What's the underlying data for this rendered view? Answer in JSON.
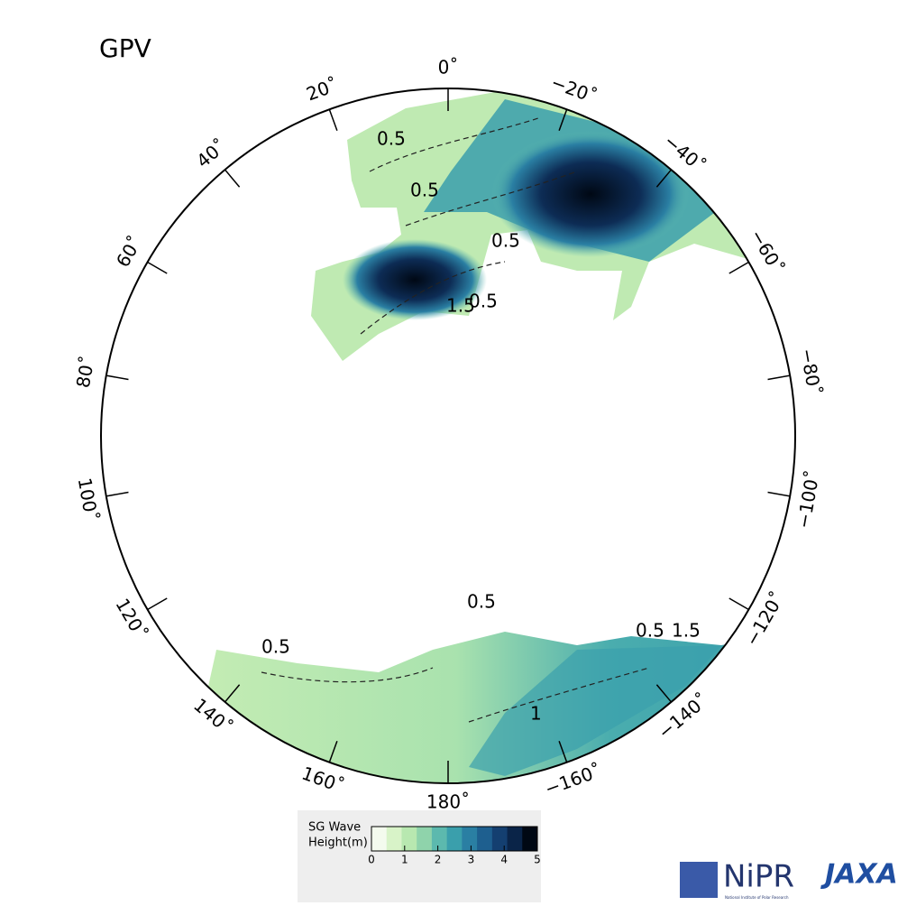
{
  "map": {
    "title": "GPV",
    "lon_ticks": [
      {
        "value": 0,
        "label": "0˚"
      },
      {
        "value": 20,
        "label": "20˚"
      },
      {
        "value": 40,
        "label": "40˚"
      },
      {
        "value": 60,
        "label": "60˚"
      },
      {
        "value": 80,
        "label": "80˚"
      },
      {
        "value": 100,
        "label": "100˚"
      },
      {
        "value": 120,
        "label": "120˚"
      },
      {
        "value": 140,
        "label": "140˚"
      },
      {
        "value": 160,
        "label": "160˚"
      },
      {
        "value": 180,
        "label": "180˚"
      },
      {
        "value": -160,
        "label": "−160˚"
      },
      {
        "value": -140,
        "label": "−140˚"
      },
      {
        "value": -120,
        "label": "−120˚"
      },
      {
        "value": -100,
        "label": "−100˚"
      },
      {
        "value": -80,
        "label": "−80˚"
      },
      {
        "value": -60,
        "label": "−60˚"
      },
      {
        "value": -40,
        "label": "−40˚"
      },
      {
        "value": -20,
        "label": "−20˚"
      }
    ],
    "contour_labels": [
      "0.5",
      "0.5",
      "0.5",
      "1.5",
      "0.5",
      "0.5",
      "0.5",
      "0.5",
      "1.5",
      "1"
    ],
    "colorbar": {
      "label": [
        "SG Wave",
        "Height(m)"
      ],
      "lim": [
        0,
        5
      ],
      "ticks": [
        0,
        1,
        2,
        3,
        4,
        5
      ],
      "colors": [
        "#f4fbee",
        "#d8f3c8",
        "#b8e8b0",
        "#8fd3ab",
        "#5cb9ae",
        "#3a9fac",
        "#2a7fa3",
        "#1e5f8f",
        "#143f70",
        "#0a2448",
        "#000814"
      ]
    },
    "logos": {
      "nipr": "NiPR",
      "nipr_sub": "National Institute of Polar Research",
      "jaxa": "JAXA"
    }
  }
}
